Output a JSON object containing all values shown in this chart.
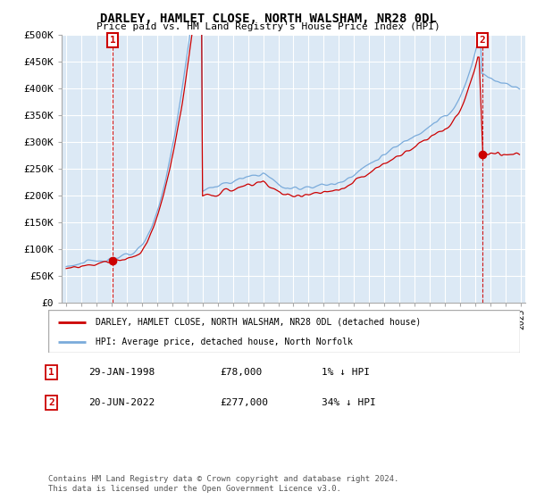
{
  "title": "DARLEY, HAMLET CLOSE, NORTH WALSHAM, NR28 0DL",
  "subtitle": "Price paid vs. HM Land Registry's House Price Index (HPI)",
  "legend_line1": "DARLEY, HAMLET CLOSE, NORTH WALSHAM, NR28 0DL (detached house)",
  "legend_line2": "HPI: Average price, detached house, North Norfolk",
  "footnote": "Contains HM Land Registry data © Crown copyright and database right 2024.\nThis data is licensed under the Open Government Licence v3.0.",
  "point1_label": "1",
  "point1_date": "29-JAN-1998",
  "point1_price": "£78,000",
  "point1_hpi": "1% ↓ HPI",
  "point2_label": "2",
  "point2_date": "20-JUN-2022",
  "point2_price": "£277,000",
  "point2_hpi": "34% ↓ HPI",
  "ylim": [
    0,
    500000
  ],
  "yticks": [
    0,
    50000,
    100000,
    150000,
    200000,
    250000,
    300000,
    350000,
    400000,
    450000,
    500000
  ],
  "ytick_labels": [
    "£0",
    "£50K",
    "£100K",
    "£150K",
    "£200K",
    "£250K",
    "£300K",
    "£350K",
    "£400K",
    "£450K",
    "£500K"
  ],
  "background_color": "#ffffff",
  "plot_bg_color": "#dce9f5",
  "grid_color": "#ffffff",
  "hpi_color": "#7aabdb",
  "price_color": "#cc0000",
  "point1_x": 1998.08,
  "point1_y": 78000,
  "point2_x": 2022.46,
  "point2_y": 277000,
  "dashed_line1_x": 1998.08,
  "dashed_line2_x": 2022.46,
  "xlim_start": 1994.7,
  "xlim_end": 2025.3
}
